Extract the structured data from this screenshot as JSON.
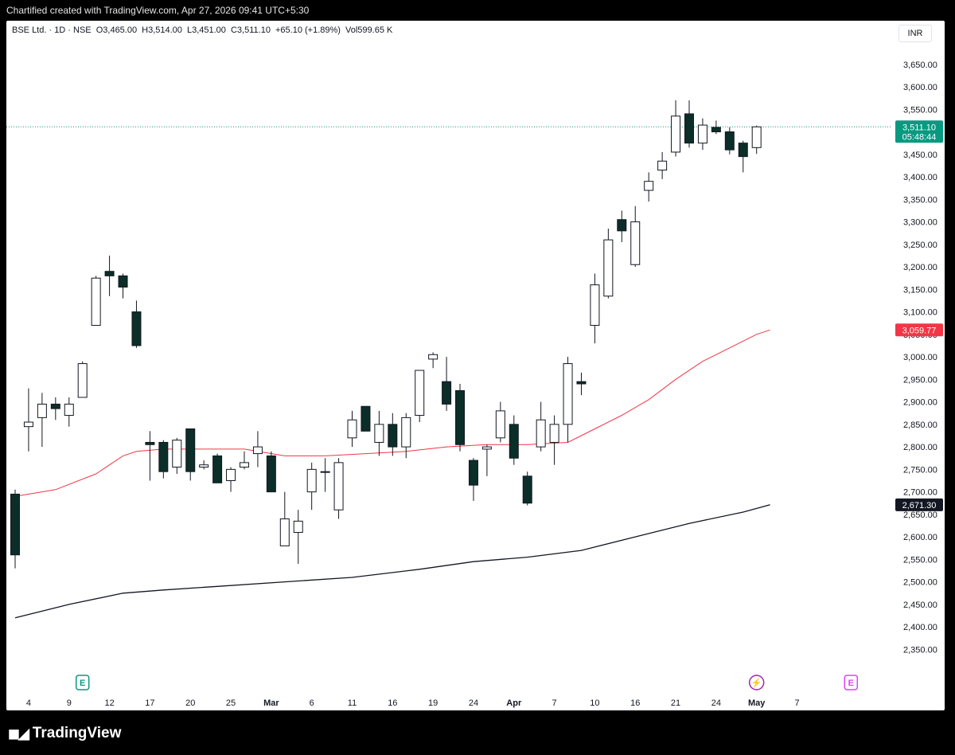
{
  "caption": "Chartified created with TradingView.com, Apr 27, 2026 09:41 UTC+5:30",
  "legend": {
    "symbol": "BSE Ltd. · 1D · NSE",
    "open": "O3,465.00",
    "high": "H3,514.00",
    "low": "L3,451.00",
    "close": "C3,511.10",
    "change": "+65.10 (+1.89%)",
    "volume": "Vol599.65 K"
  },
  "currency": "INR",
  "brand": "TradingView",
  "colors": {
    "bull_fill": "#ffffff",
    "bear_fill": "#0b2e28",
    "candle_border": "#131722",
    "ma_fast": "#f23645",
    "ma_slow": "#131722",
    "last_price": "#089981"
  },
  "chart_data": {
    "type": "candlestick",
    "ylim": [
      2310,
      3685
    ],
    "y_ticks": [
      2350,
      2400,
      2450,
      2500,
      2550,
      2600,
      2650,
      2700,
      2750,
      2800,
      2850,
      2900,
      2950,
      3000,
      3050,
      3100,
      3150,
      3200,
      3250,
      3300,
      3350,
      3400,
      3450,
      3500,
      3550,
      3600,
      3650
    ],
    "y_tick_labels": [
      "2,350.00",
      "2,400.00",
      "2,450.00",
      "2,500.00",
      "2,550.00",
      "2,600.00",
      "2,650.00",
      "2,700.00",
      "2,750.00",
      "2,800.00",
      "2,850.00",
      "2,900.00",
      "2,950.00",
      "3,000.00",
      "3,050.00",
      "3,100.00",
      "3,150.00",
      "3,200.00",
      "3,250.00",
      "3,300.00",
      "3,350.00",
      "3,400.00",
      "3,450.00",
      "3,500.00",
      "3,550.00",
      "3,600.00",
      "3,650.00"
    ],
    "x_labels": [
      {
        "label": "4",
        "x": 1
      },
      {
        "label": "9",
        "x": 4
      },
      {
        "label": "12",
        "x": 7
      },
      {
        "label": "17",
        "x": 10
      },
      {
        "label": "20",
        "x": 13
      },
      {
        "label": "25",
        "x": 16
      },
      {
        "label": "Mar",
        "x": 19
      },
      {
        "label": "6",
        "x": 22
      },
      {
        "label": "11",
        "x": 25
      },
      {
        "label": "16",
        "x": 28
      },
      {
        "label": "19",
        "x": 31
      },
      {
        "label": "24",
        "x": 34
      },
      {
        "label": "Apr",
        "x": 37
      },
      {
        "label": "7",
        "x": 40
      },
      {
        "label": "10",
        "x": 43
      },
      {
        "label": "16",
        "x": 46
      },
      {
        "label": "21",
        "x": 49
      },
      {
        "label": "24",
        "x": 52
      },
      {
        "label": "May",
        "x": 55
      },
      {
        "label": "7",
        "x": 58
      }
    ],
    "candles": [
      [
        2695,
        2705,
        2530,
        2560
      ],
      [
        2845,
        2930,
        2790,
        2855
      ],
      [
        2865,
        2920,
        2800,
        2895
      ],
      [
        2895,
        2910,
        2860,
        2885
      ],
      [
        2870,
        2910,
        2845,
        2895
      ],
      [
        2910,
        2990,
        2910,
        2985
      ],
      [
        3070,
        3180,
        3070,
        3175
      ],
      [
        3190,
        3225,
        3135,
        3180
      ],
      [
        3180,
        3185,
        3130,
        3155
      ],
      [
        3100,
        3125,
        3020,
        3025
      ],
      [
        2810,
        2835,
        2725,
        2805
      ],
      [
        2810,
        2815,
        2730,
        2745
      ],
      [
        2755,
        2820,
        2740,
        2815
      ],
      [
        2840,
        2840,
        2725,
        2745
      ],
      [
        2755,
        2770,
        2750,
        2760
      ],
      [
        2780,
        2785,
        2720,
        2720
      ],
      [
        2725,
        2755,
        2700,
        2750
      ],
      [
        2755,
        2790,
        2750,
        2765
      ],
      [
        2785,
        2835,
        2755,
        2800
      ],
      [
        2780,
        2790,
        2700,
        2700
      ],
      [
        2580,
        2700,
        2580,
        2640
      ],
      [
        2610,
        2660,
        2540,
        2635
      ],
      [
        2700,
        2765,
        2660,
        2750
      ],
      [
        2745,
        2775,
        2700,
        2745
      ],
      [
        2660,
        2775,
        2640,
        2765
      ],
      [
        2820,
        2880,
        2800,
        2860
      ],
      [
        2890,
        2890,
        2835,
        2835
      ],
      [
        2810,
        2880,
        2780,
        2850
      ],
      [
        2850,
        2875,
        2780,
        2800
      ],
      [
        2800,
        2875,
        2775,
        2865
      ],
      [
        2870,
        2960,
        2855,
        2970
      ],
      [
        2995,
        3010,
        2975,
        3005
      ],
      [
        2945,
        3000,
        2880,
        2895
      ],
      [
        2925,
        2940,
        2790,
        2805
      ],
      [
        2770,
        2775,
        2680,
        2715
      ],
      [
        2795,
        2805,
        2735,
        2800
      ],
      [
        2820,
        2900,
        2810,
        2880
      ],
      [
        2850,
        2870,
        2760,
        2775
      ],
      [
        2735,
        2745,
        2670,
        2675
      ],
      [
        2800,
        2900,
        2790,
        2860
      ],
      [
        2810,
        2870,
        2760,
        2850
      ],
      [
        2850,
        3000,
        2810,
        2985
      ],
      [
        2945,
        2965,
        2915,
        2940
      ],
      [
        3070,
        3185,
        3030,
        3160
      ],
      [
        3135,
        3285,
        3130,
        3260
      ],
      [
        3305,
        3325,
        3255,
        3280
      ],
      [
        3205,
        3335,
        3200,
        3300
      ],
      [
        3370,
        3410,
        3345,
        3390
      ],
      [
        3415,
        3455,
        3395,
        3435
      ],
      [
        3455,
        3570,
        3445,
        3535
      ],
      [
        3540,
        3570,
        3465,
        3475
      ],
      [
        3475,
        3530,
        3460,
        3515
      ],
      [
        3510,
        3525,
        3495,
        3500
      ],
      [
        3500,
        3510,
        3450,
        3460
      ],
      [
        3475,
        3480,
        3410,
        3445
      ],
      [
        3465,
        3514,
        3451,
        3511.1
      ]
    ],
    "series": [
      {
        "name": "",
        "type": "line",
        "color": "#f23645",
        "values": [
          [
            0,
            2690
          ],
          [
            3,
            2705
          ],
          [
            6,
            2740
          ],
          [
            8,
            2780
          ],
          [
            9,
            2790
          ],
          [
            11,
            2795
          ],
          [
            14,
            2795
          ],
          [
            17,
            2795
          ],
          [
            20,
            2780
          ],
          [
            23,
            2780
          ],
          [
            26,
            2785
          ],
          [
            29,
            2790
          ],
          [
            32,
            2800
          ],
          [
            35,
            2805
          ],
          [
            38,
            2805
          ],
          [
            41,
            2810
          ],
          [
            43,
            2840
          ],
          [
            45,
            2870
          ],
          [
            47,
            2905
          ],
          [
            49,
            2950
          ],
          [
            51,
            2990
          ],
          [
            53,
            3020
          ],
          [
            55,
            3050
          ],
          [
            56,
            3059.77
          ]
        ]
      },
      {
        "name": "",
        "type": "line",
        "color": "#131722",
        "values": [
          [
            0,
            2420
          ],
          [
            4,
            2450
          ],
          [
            8,
            2475
          ],
          [
            11,
            2482
          ],
          [
            15,
            2490
          ],
          [
            20,
            2500
          ],
          [
            25,
            2510
          ],
          [
            30,
            2528
          ],
          [
            34,
            2545
          ],
          [
            38,
            2555
          ],
          [
            42,
            2570
          ],
          [
            46,
            2600
          ],
          [
            50,
            2630
          ],
          [
            54,
            2655
          ],
          [
            56,
            2671.3
          ]
        ]
      }
    ],
    "price_labels": [
      {
        "value": 3511.1,
        "label": "3,511.10",
        "sublabel": "05:48:44",
        "color": "#089981"
      },
      {
        "value": 3059.77,
        "label": "3,059.77",
        "color": "#f23645"
      },
      {
        "value": 2671.3,
        "label": "2,671.30",
        "color": "#131722"
      }
    ],
    "event_markers": [
      {
        "x": 5,
        "glyph": "E",
        "color": "#089981"
      },
      {
        "x": 55,
        "glyph": "⚡",
        "color": "#9c27b0"
      },
      {
        "x": 62,
        "glyph": "E",
        "color": "#e040fb"
      }
    ]
  }
}
